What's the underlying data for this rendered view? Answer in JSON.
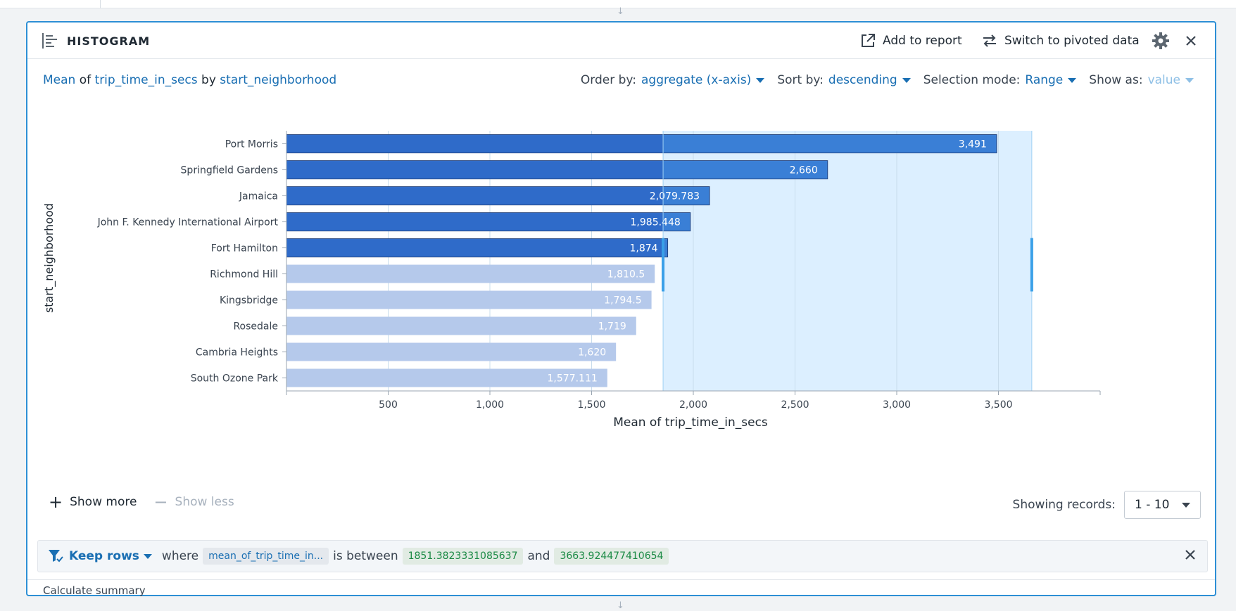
{
  "header": {
    "title": "HISTOGRAM",
    "add_to_report": "Add to report",
    "switch_pivot": "Switch to pivoted data"
  },
  "subtitle": {
    "agg": "Mean",
    "of": "of",
    "field": "trip_time_in_secs",
    "by": "by",
    "group": "start_neighborhood"
  },
  "options": {
    "order_label": "Order by:",
    "order_value": "aggregate (x-axis)",
    "sort_label": "Sort by:",
    "sort_value": "descending",
    "selection_label": "Selection mode:",
    "selection_value": "Range",
    "show_label": "Show as:",
    "show_value": "value"
  },
  "chart_data": {
    "type": "bar",
    "orientation": "horizontal",
    "categories": [
      "Port Morris",
      "Springfield Gardens",
      "Jamaica",
      "John F. Kennedy International Airport",
      "Fort Hamilton",
      "Richmond Hill",
      "Kingsbridge",
      "Rosedale",
      "Cambria Heights",
      "South Ozone Park"
    ],
    "values": [
      3491,
      2660,
      2079.783,
      1985.448,
      1874,
      1810.5,
      1794.5,
      1719,
      1620,
      1577.111
    ],
    "data_labels": [
      "3,491",
      "2,660",
      "2,079.783",
      "1,985.448",
      "1,874",
      "1,810.5",
      "1,794.5",
      "1,719",
      "1,620",
      "1,577.111"
    ],
    "selected": [
      true,
      true,
      true,
      true,
      true,
      false,
      false,
      false,
      false,
      false
    ],
    "xlabel": "Mean of trip_time_in_secs",
    "ylabel": "start_neighborhood",
    "xlim": [
      0,
      4000
    ],
    "xticks": [
      500,
      1000,
      1500,
      2000,
      2500,
      3000,
      3500
    ],
    "xtick_labels": [
      "500",
      "1,000",
      "1,500",
      "2,000",
      "2,500",
      "3,000",
      "3,500"
    ],
    "selection_range": [
      1851.3823331085637,
      3663.924477410654
    ],
    "grid": true,
    "colors": {
      "selected": "#2f6bc9",
      "selected_in_range": "#3a7fd6",
      "unselected": "#b5c9eb",
      "range_fill": "#dcefff",
      "range_handle": "#3aa0e8"
    }
  },
  "show": {
    "more": "Show more",
    "less": "Show less",
    "records_label": "Showing records:",
    "records_value": "1 - 10"
  },
  "filter": {
    "action": "Keep rows",
    "where": "where",
    "column": "mean_of_trip_time_in...",
    "op": "is between",
    "low": "1851.3823331085637",
    "and": "and",
    "high": "3663.924477410654"
  },
  "footer": {
    "summary": "Calculate summary"
  }
}
